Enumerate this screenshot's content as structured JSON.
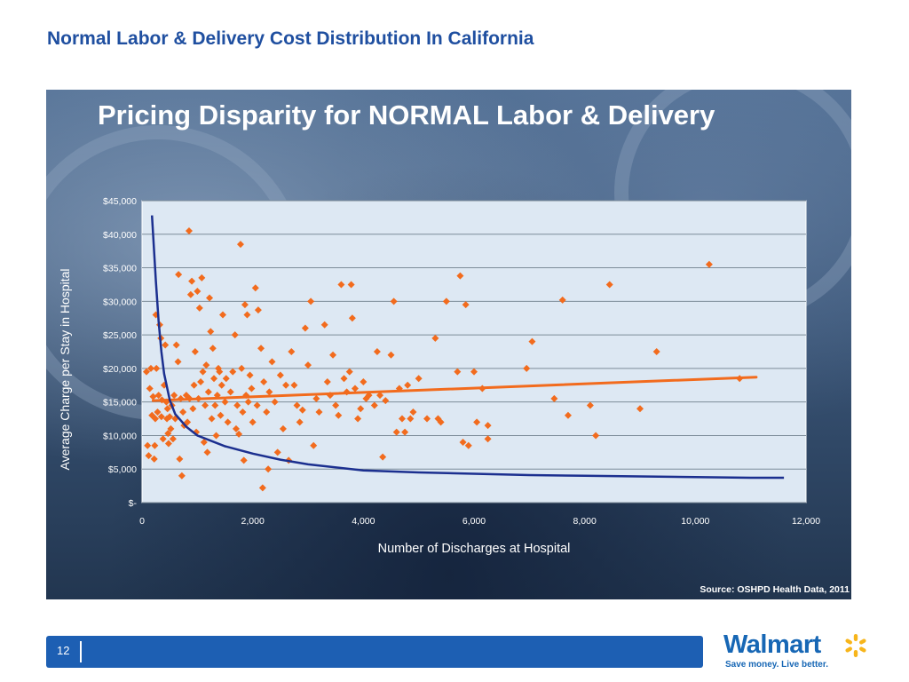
{
  "slide": {
    "title": "Normal Labor & Delivery Cost Distribution In California",
    "page_number": "12"
  },
  "logo": {
    "name": "Walmart",
    "tagline": "Save money. Live better.",
    "spark_icon": "walmart-spark-icon",
    "color": "#1767b5"
  },
  "colors": {
    "title": "#1f4fa0",
    "footer_bar": "#1d5fb3",
    "points": "#f26b1d",
    "trend_line": "#f26b1d",
    "curve_line": "#1b2f8f",
    "plot_bg": "#dde8f3"
  },
  "chart_data": {
    "type": "scatter",
    "title": "Pricing Disparity for NORMAL Labor & Delivery",
    "xlabel": "Number of Discharges at Hospital",
    "ylabel": "Average Charge per Stay in Hospital",
    "source": "Source: OSHPD Health Data, 2011",
    "xlim": [
      0,
      12000
    ],
    "ylim": [
      0,
      45000
    ],
    "x_ticks": [
      0,
      2000,
      4000,
      6000,
      8000,
      10000,
      12000
    ],
    "x_tick_labels": [
      "0",
      "2,000",
      "4,000",
      "6,000",
      "8,000",
      "10,000",
      "12,000"
    ],
    "y_ticks": [
      0,
      5000,
      10000,
      15000,
      20000,
      25000,
      30000,
      35000,
      40000,
      45000
    ],
    "y_tick_labels": [
      "$-",
      "$5,000",
      "$10,000",
      "$15,000",
      "$20,000",
      "$25,000",
      "$30,000",
      "$35,000",
      "$40,000",
      "$45,000"
    ],
    "grid": "horizontal",
    "trend_line": [
      [
        200,
        15200
      ],
      [
        11100,
        18700
      ]
    ],
    "curve": [
      [
        180,
        42800
      ],
      [
        250,
        33000
      ],
      [
        300,
        27000
      ],
      [
        350,
        22500
      ],
      [
        400,
        19200
      ],
      [
        500,
        15300
      ],
      [
        600,
        13200
      ],
      [
        800,
        11300
      ],
      [
        1000,
        10000
      ],
      [
        1500,
        8400
      ],
      [
        2000,
        7300
      ],
      [
        2500,
        6400
      ],
      [
        3000,
        5700
      ],
      [
        4000,
        4800
      ],
      [
        5000,
        4500
      ],
      [
        6000,
        4300
      ],
      [
        7000,
        4100
      ],
      [
        8000,
        4000
      ],
      [
        9000,
        3900
      ],
      [
        10000,
        3800
      ],
      [
        11000,
        3700
      ],
      [
        11600,
        3700
      ]
    ],
    "points": [
      [
        80,
        19500
      ],
      [
        100,
        8500
      ],
      [
        120,
        7000
      ],
      [
        140,
        17000
      ],
      [
        160,
        20000
      ],
      [
        180,
        13000
      ],
      [
        200,
        15800
      ],
      [
        220,
        6500
      ],
      [
        230,
        8500
      ],
      [
        240,
        12500
      ],
      [
        250,
        28000
      ],
      [
        260,
        20000
      ],
      [
        280,
        13500
      ],
      [
        300,
        16000
      ],
      [
        320,
        26500
      ],
      [
        340,
        24500
      ],
      [
        350,
        12800
      ],
      [
        360,
        15300
      ],
      [
        380,
        9500
      ],
      [
        400,
        17500
      ],
      [
        420,
        23500
      ],
      [
        440,
        15000
      ],
      [
        450,
        12500
      ],
      [
        460,
        14000
      ],
      [
        470,
        10300
      ],
      [
        480,
        8800
      ],
      [
        500,
        12800
      ],
      [
        520,
        11000
      ],
      [
        540,
        14500
      ],
      [
        560,
        9500
      ],
      [
        580,
        16000
      ],
      [
        600,
        12500
      ],
      [
        620,
        23500
      ],
      [
        650,
        21000
      ],
      [
        660,
        34000
      ],
      [
        680,
        6500
      ],
      [
        700,
        15500
      ],
      [
        720,
        4000
      ],
      [
        740,
        13500
      ],
      [
        760,
        11500
      ],
      [
        800,
        16000
      ],
      [
        820,
        12000
      ],
      [
        850,
        40500
      ],
      [
        860,
        15500
      ],
      [
        880,
        31000
      ],
      [
        900,
        33000
      ],
      [
        920,
        14000
      ],
      [
        940,
        17500
      ],
      [
        960,
        22500
      ],
      [
        980,
        10500
      ],
      [
        1000,
        31500
      ],
      [
        1020,
        15500
      ],
      [
        1040,
        29000
      ],
      [
        1060,
        18000
      ],
      [
        1080,
        33500
      ],
      [
        1100,
        19500
      ],
      [
        1120,
        9000
      ],
      [
        1140,
        14500
      ],
      [
        1160,
        20500
      ],
      [
        1180,
        7500
      ],
      [
        1200,
        16500
      ],
      [
        1220,
        30500
      ],
      [
        1240,
        25500
      ],
      [
        1260,
        12500
      ],
      [
        1280,
        23000
      ],
      [
        1300,
        18500
      ],
      [
        1320,
        14500
      ],
      [
        1340,
        10000
      ],
      [
        1360,
        16000
      ],
      [
        1380,
        20000
      ],
      [
        1400,
        19500
      ],
      [
        1420,
        13000
      ],
      [
        1440,
        17500
      ],
      [
        1460,
        28000
      ],
      [
        1500,
        15000
      ],
      [
        1520,
        18500
      ],
      [
        1550,
        12000
      ],
      [
        1600,
        16500
      ],
      [
        1640,
        19500
      ],
      [
        1680,
        25000
      ],
      [
        1700,
        11000
      ],
      [
        1720,
        14500
      ],
      [
        1750,
        10200
      ],
      [
        1780,
        38500
      ],
      [
        1800,
        20000
      ],
      [
        1820,
        13500
      ],
      [
        1840,
        6300
      ],
      [
        1860,
        29500
      ],
      [
        1880,
        16000
      ],
      [
        1900,
        28000
      ],
      [
        1920,
        15000
      ],
      [
        1950,
        19000
      ],
      [
        1980,
        17000
      ],
      [
        2000,
        12000
      ],
      [
        2050,
        32000
      ],
      [
        2080,
        14500
      ],
      [
        2100,
        28700
      ],
      [
        2150,
        23000
      ],
      [
        2180,
        2200
      ],
      [
        2200,
        18000
      ],
      [
        2250,
        13500
      ],
      [
        2280,
        5000
      ],
      [
        2300,
        16500
      ],
      [
        2350,
        21000
      ],
      [
        2400,
        15000
      ],
      [
        2450,
        7500
      ],
      [
        2500,
        19000
      ],
      [
        2550,
        11000
      ],
      [
        2600,
        17500
      ],
      [
        2650,
        6300
      ],
      [
        2700,
        22500
      ],
      [
        2750,
        17500
      ],
      [
        2800,
        14500
      ],
      [
        2850,
        12000
      ],
      [
        2900,
        13800
      ],
      [
        2950,
        26000
      ],
      [
        3000,
        20500
      ],
      [
        3050,
        30000
      ],
      [
        3100,
        8500
      ],
      [
        3150,
        15500
      ],
      [
        3200,
        13500
      ],
      [
        3300,
        26500
      ],
      [
        3350,
        18000
      ],
      [
        3400,
        16000
      ],
      [
        3450,
        22000
      ],
      [
        3500,
        14500
      ],
      [
        3550,
        13000
      ],
      [
        3600,
        32500
      ],
      [
        3650,
        18500
      ],
      [
        3700,
        16500
      ],
      [
        3750,
        19500
      ],
      [
        3780,
        32500
      ],
      [
        3800,
        27500
      ],
      [
        3850,
        17000
      ],
      [
        3900,
        12500
      ],
      [
        3950,
        14000
      ],
      [
        4000,
        18000
      ],
      [
        4050,
        15500
      ],
      [
        4100,
        16000
      ],
      [
        4200,
        14500
      ],
      [
        4250,
        22500
      ],
      [
        4300,
        16000
      ],
      [
        4350,
        6800
      ],
      [
        4400,
        15200
      ],
      [
        4500,
        22000
      ],
      [
        4550,
        30000
      ],
      [
        4600,
        10500
      ],
      [
        4650,
        17000
      ],
      [
        4700,
        12500
      ],
      [
        4750,
        10500
      ],
      [
        4800,
        17500
      ],
      [
        4850,
        12500
      ],
      [
        4900,
        13500
      ],
      [
        5000,
        18500
      ],
      [
        5150,
        12500
      ],
      [
        5300,
        24500
      ],
      [
        5350,
        12500
      ],
      [
        5400,
        12000
      ],
      [
        5500,
        30000
      ],
      [
        5700,
        19500
      ],
      [
        5750,
        33800
      ],
      [
        5800,
        9000
      ],
      [
        5850,
        29500
      ],
      [
        5900,
        8500
      ],
      [
        6000,
        19500
      ],
      [
        6050,
        12000
      ],
      [
        6150,
        17000
      ],
      [
        6250,
        9500
      ],
      [
        6250,
        11500
      ],
      [
        6950,
        20000
      ],
      [
        7050,
        24000
      ],
      [
        7450,
        15500
      ],
      [
        7600,
        30200
      ],
      [
        7700,
        13000
      ],
      [
        8100,
        14500
      ],
      [
        8200,
        10000
      ],
      [
        8450,
        32500
      ],
      [
        9000,
        14000
      ],
      [
        9300,
        22500
      ],
      [
        10250,
        35500
      ],
      [
        10800,
        18500
      ]
    ]
  }
}
